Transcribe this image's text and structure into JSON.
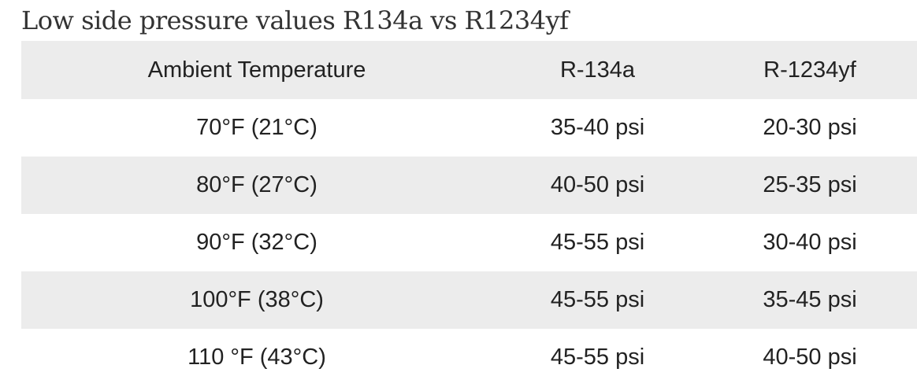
{
  "heading": "Low side pressure values R134a vs R1234yf",
  "table": {
    "headers": [
      "Ambient Temperature",
      "R-134a",
      "R-1234yf"
    ],
    "rows": [
      [
        "70°F (21°C)",
        "35-40 psi",
        "20-30 psi"
      ],
      [
        "80°F (27°C)",
        "40-50 psi",
        "25-35 psi"
      ],
      [
        "90°F (32°C)",
        "45-55 psi",
        "30-40 psi"
      ],
      [
        "100°F (38°C)",
        "45-55 psi",
        "35-45 psi"
      ],
      [
        "110 °F (43°C)",
        "45-55 psi",
        "40-50 psi"
      ]
    ]
  }
}
